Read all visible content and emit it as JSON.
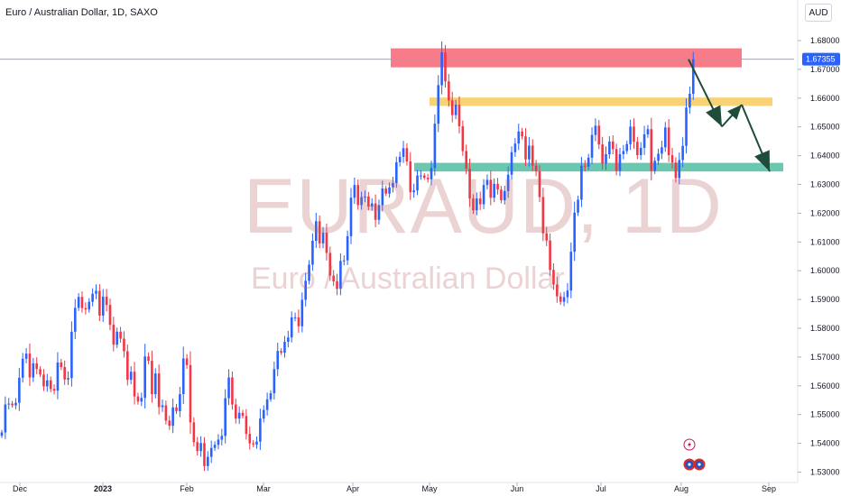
{
  "header": {
    "symbol_title": "Euro / Australian Dollar, 1D, SAXO",
    "currency_button": "AUD"
  },
  "watermark": {
    "ticker": "EURAUD, 1D",
    "description": "Euro / Australian Dollar"
  },
  "colors": {
    "up": "#2962ff",
    "down": "#f23645",
    "resistance_zone": "#f77c88",
    "upper_support_zone": "#f9d276",
    "lower_support_zone": "#6bc8b0",
    "arrows": "#1f4d3a",
    "price_line": "#9598f8",
    "price_tag": "#2962ff"
  },
  "chart_data": {
    "type": "candlestick",
    "symbol": "EURAUD",
    "interval": "1D",
    "x_ticks": [
      "Dec",
      "2023",
      "Feb",
      "Mar",
      "Apr",
      "May",
      "Jun",
      "Jul",
      "Aug",
      "Sep"
    ],
    "y_ticks": [
      "1.68000",
      "1.67000",
      "1.66000",
      "1.65000",
      "1.64000",
      "1.63000",
      "1.62000",
      "1.61000",
      "1.60000",
      "1.59000",
      "1.58000",
      "1.57000",
      "1.56000",
      "1.55000",
      "1.54000",
      "1.53000"
    ],
    "ylim": [
      1.53,
      1.682
    ],
    "current_price": 1.67355,
    "current_price_label": "1.67355",
    "series": [
      {
        "name": "Close",
        "values": [
          1.5438,
          1.5535,
          1.5538,
          1.5532,
          1.5541,
          1.5628,
          1.5694,
          1.5712,
          1.5629,
          1.5678,
          1.5658,
          1.5639,
          1.5598,
          1.5619,
          1.5589,
          1.5583,
          1.5681,
          1.5665,
          1.5622,
          1.5627,
          1.5788,
          1.5871,
          1.5909,
          1.587,
          1.5865,
          1.5892,
          1.592,
          1.593,
          1.5844,
          1.591,
          1.5881,
          1.5812,
          1.5743,
          1.5788,
          1.5764,
          1.572,
          1.5621,
          1.5649,
          1.5563,
          1.5545,
          1.5558,
          1.5702,
          1.5687,
          1.5571,
          1.5643,
          1.5526,
          1.5532,
          1.5479,
          1.5461,
          1.5525,
          1.5512,
          1.5571,
          1.5695,
          1.5672,
          1.5473,
          1.5404,
          1.5373,
          1.5401,
          1.5321,
          1.5353,
          1.5384,
          1.5395,
          1.5413,
          1.5426,
          1.5557,
          1.5629,
          1.5535,
          1.5486,
          1.5506,
          1.5495,
          1.5433,
          1.54,
          1.5396,
          1.5406,
          1.5486,
          1.5516,
          1.5553,
          1.5574,
          1.5658,
          1.5721,
          1.5715,
          1.5753,
          1.5768,
          1.5838,
          1.5838,
          1.5807,
          1.5899,
          1.5965,
          1.6021,
          1.6104,
          1.6172,
          1.6095,
          1.6132,
          1.6062,
          1.5983,
          1.5963,
          1.5937,
          1.6034,
          1.6036,
          1.612,
          1.6254,
          1.6298,
          1.6228,
          1.6256,
          1.6258,
          1.6223,
          1.6234,
          1.6177,
          1.6228,
          1.6286,
          1.6268,
          1.629,
          1.6305,
          1.6377,
          1.6396,
          1.6426,
          1.638,
          1.6273,
          1.6279,
          1.6331,
          1.6331,
          1.6323,
          1.6318,
          1.6357,
          1.6511,
          1.6645,
          1.6759,
          1.6658,
          1.6592,
          1.6541,
          1.6577,
          1.6502,
          1.6416,
          1.6355,
          1.6251,
          1.621,
          1.6251,
          1.6231,
          1.6298,
          1.6316,
          1.6254,
          1.6302,
          1.6282,
          1.6245,
          1.6277,
          1.6334,
          1.6412,
          1.6442,
          1.6484,
          1.6467,
          1.6387,
          1.6435,
          1.6365,
          1.6346,
          1.6256,
          1.613,
          1.6105,
          1.6003,
          1.5952,
          1.5911,
          1.5892,
          1.5908,
          1.5931,
          1.6066,
          1.6202,
          1.6247,
          1.6365,
          1.6362,
          1.6393,
          1.6472,
          1.6504,
          1.6439,
          1.6373,
          1.6405,
          1.6449,
          1.6423,
          1.6347,
          1.6405,
          1.6416,
          1.644,
          1.6501,
          1.6448,
          1.6402,
          1.6427,
          1.6474,
          1.6492,
          1.6347,
          1.6382,
          1.6407,
          1.6429,
          1.6498,
          1.6402,
          1.6376,
          1.6322,
          1.6385,
          1.6434,
          1.6567,
          1.6615,
          1.6735
        ]
      }
    ],
    "annotations": [
      {
        "type": "zone",
        "label": "resistance",
        "top": 1.6773,
        "bottom": 1.6707
      },
      {
        "type": "zone",
        "label": "upper support",
        "top": 1.6602,
        "bottom": 1.6573
      },
      {
        "type": "zone",
        "label": "lower support",
        "top": 1.6375,
        "bottom": 1.6345
      },
      {
        "type": "projected-path",
        "points": [
          1.6735,
          1.6501,
          1.6577,
          1.6345
        ]
      }
    ],
    "events": [
      "lightning",
      "earnings",
      "earnings"
    ],
    "grid": false,
    "legend": "none"
  }
}
